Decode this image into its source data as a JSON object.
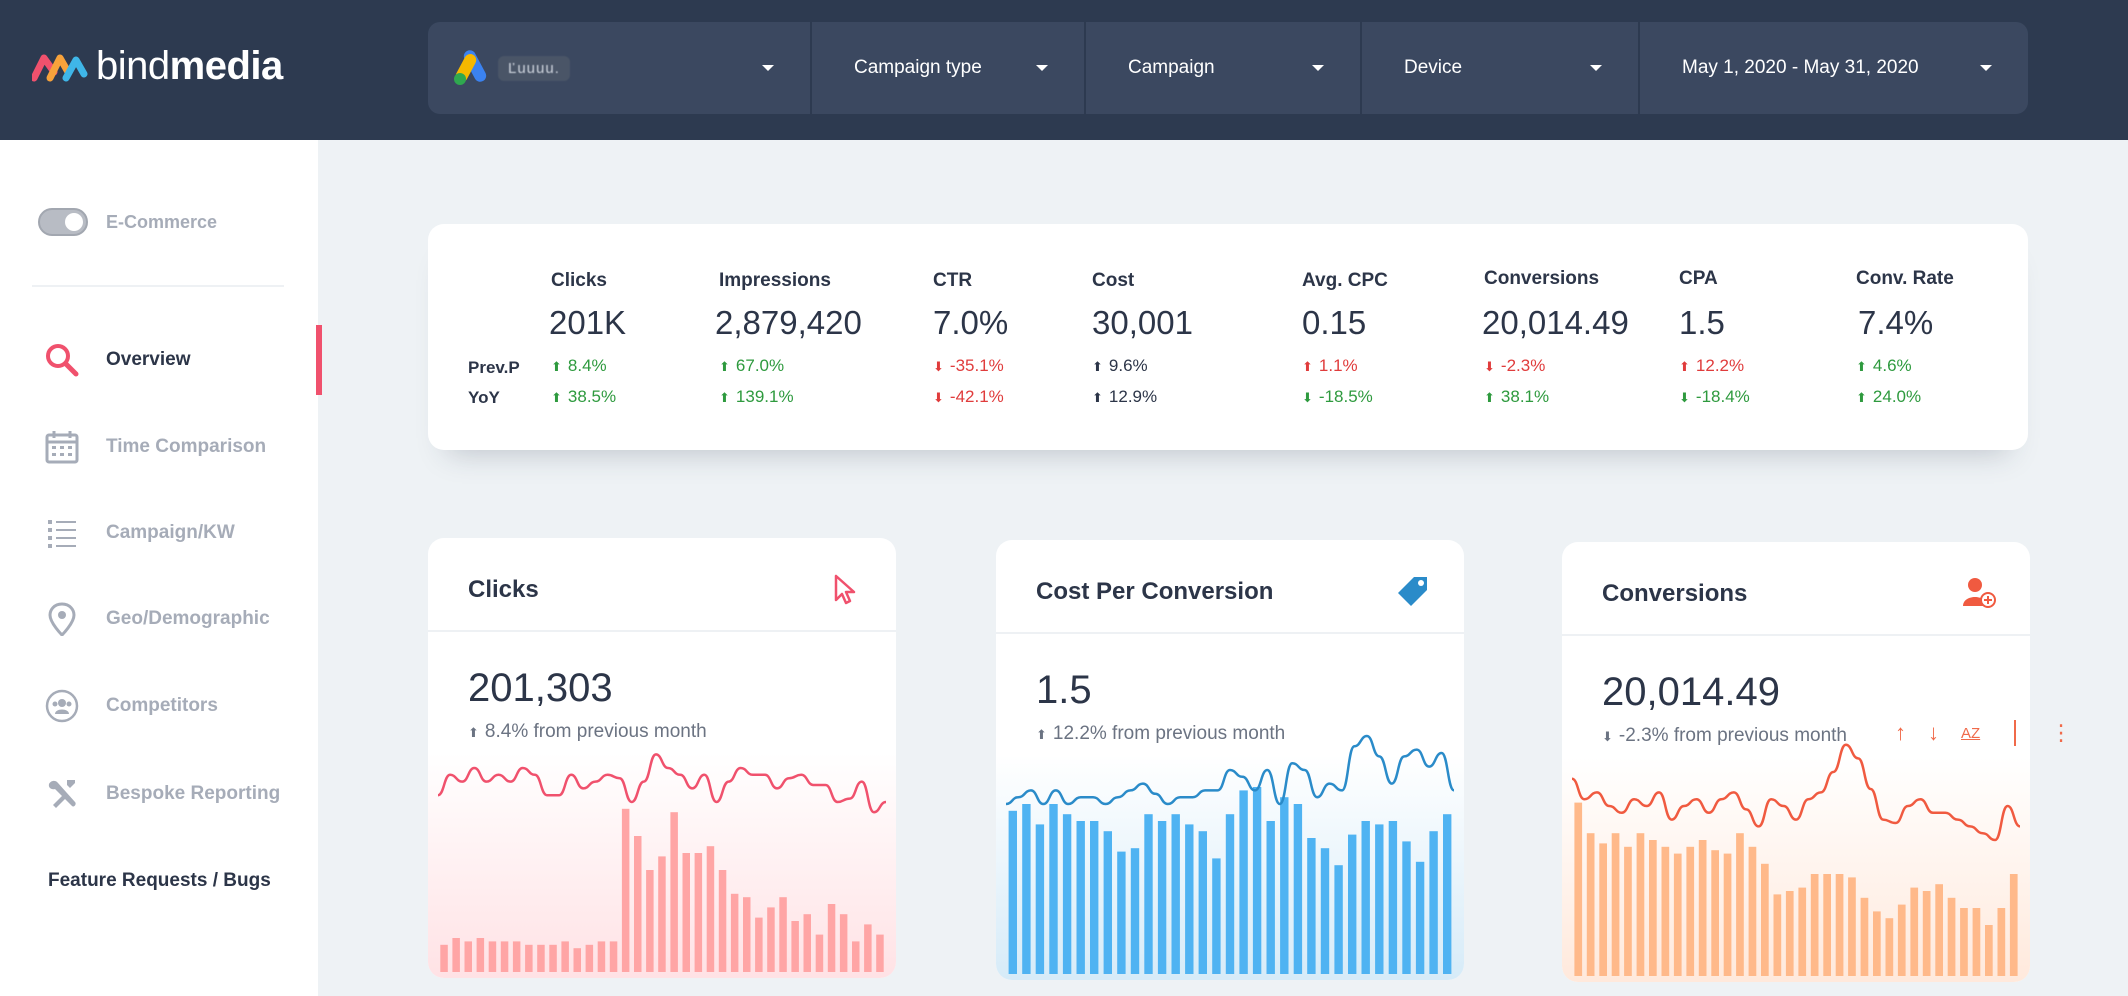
{
  "brand": {
    "name_part1": "bind",
    "name_part2": "media"
  },
  "filters": {
    "account": "\u0000",
    "campaign_type": "Campaign type",
    "campaign": "Campaign",
    "device": "Device",
    "date_range": "May 1, 2020 - May 31, 2020"
  },
  "sidebar": {
    "toggle_label": "E-Commerce",
    "items": [
      {
        "label": "Overview",
        "icon": "search-icon",
        "active": true
      },
      {
        "label": "Time Comparison",
        "icon": "calendar-icon",
        "active": false
      },
      {
        "label": "Campaign/KW",
        "icon": "list-icon",
        "active": false
      },
      {
        "label": "Geo/Demographic",
        "icon": "map-pin-icon",
        "active": false
      },
      {
        "label": "Competitors",
        "icon": "competitors-icon",
        "active": false
      },
      {
        "label": "Bespoke Reporting",
        "icon": "tools-icon",
        "active": false
      }
    ],
    "feature_link": "Feature Requests / Bugs"
  },
  "kpis": {
    "row_labels": [
      "Prev.P",
      "YoY"
    ],
    "items": [
      {
        "name": "Clicks",
        "value": "201K",
        "prev": "8.4%",
        "prev_dir": "up",
        "prev_tone": "good",
        "yoy": "38.5%",
        "yoy_dir": "up",
        "yoy_tone": "good"
      },
      {
        "name": "Impressions",
        "value": "2,879,420",
        "prev": "67.0%",
        "prev_dir": "up",
        "prev_tone": "good",
        "yoy": "139.1%",
        "yoy_dir": "up",
        "yoy_tone": "good"
      },
      {
        "name": "CTR",
        "value": "7.0%",
        "prev": "-35.1%",
        "prev_dir": "down",
        "prev_tone": "bad",
        "yoy": "-42.1%",
        "yoy_dir": "down",
        "yoy_tone": "bad"
      },
      {
        "name": "Cost",
        "value": "30,001",
        "prev": "9.6%",
        "prev_dir": "up",
        "prev_tone": "neutral",
        "yoy": "12.9%",
        "yoy_dir": "up",
        "yoy_tone": "neutral"
      },
      {
        "name": "Avg. CPC",
        "value": "0.15",
        "prev": "1.1%",
        "prev_dir": "up",
        "prev_tone": "bad",
        "yoy": "-18.5%",
        "yoy_dir": "down",
        "yoy_tone": "good"
      },
      {
        "name": "Conversions",
        "value": "20,014.49",
        "prev": "-2.3%",
        "prev_dir": "down",
        "prev_tone": "bad",
        "yoy": "38.1%",
        "yoy_dir": "up",
        "yoy_tone": "good"
      },
      {
        "name": "CPA",
        "value": "1.5",
        "prev": "12.2%",
        "prev_dir": "up",
        "prev_tone": "bad",
        "yoy": "-18.4%",
        "yoy_dir": "down",
        "yoy_tone": "good"
      },
      {
        "name": "Conv. Rate",
        "value": "7.4%",
        "prev": "4.6%",
        "prev_dir": "up",
        "prev_tone": "good",
        "yoy": "24.0%",
        "yoy_dir": "up",
        "yoy_tone": "good"
      }
    ]
  },
  "cards": [
    {
      "title": "Clicks",
      "icon": "cursor-icon",
      "value": "201,303",
      "change": "8.4% from previous month",
      "change_dir": "up",
      "color": "#f0516d",
      "bar_color": "#ffa5a5",
      "chart_data": {
        "type": "bar",
        "bars": [
          0.08,
          0.1,
          0.09,
          0.1,
          0.09,
          0.09,
          0.09,
          0.08,
          0.08,
          0.08,
          0.09,
          0.07,
          0.08,
          0.09,
          0.09,
          0.48,
          0.4,
          0.3,
          0.34,
          0.47,
          0.35,
          0.35,
          0.37,
          0.3,
          0.23,
          0.22,
          0.16,
          0.19,
          0.22,
          0.15,
          0.17,
          0.11,
          0.2,
          0.17,
          0.09,
          0.14,
          0.11
        ],
        "line": [
          0.52,
          0.58,
          0.56,
          0.6,
          0.56,
          0.58,
          0.56,
          0.6,
          0.58,
          0.52,
          0.52,
          0.58,
          0.54,
          0.56,
          0.58,
          0.57,
          0.5,
          0.56,
          0.64,
          0.6,
          0.58,
          0.54,
          0.58,
          0.5,
          0.56,
          0.6,
          0.58,
          0.58,
          0.54,
          0.57,
          0.58,
          0.55,
          0.55,
          0.5,
          0.51,
          0.56,
          0.47,
          0.5
        ]
      }
    },
    {
      "title": "Cost Per Conversion",
      "icon": "tag-icon",
      "value": "1.5",
      "change": "12.2% from previous month",
      "change_dir": "up",
      "color": "#2a8bc9",
      "bar_color": "#4fb3f2",
      "chart_data": {
        "type": "bar",
        "bars": [
          0.48,
          0.5,
          0.44,
          0.5,
          0.47,
          0.45,
          0.45,
          0.42,
          0.36,
          0.37,
          0.47,
          0.45,
          0.47,
          0.44,
          0.42,
          0.34,
          0.47,
          0.54,
          0.55,
          0.45,
          0.52,
          0.5,
          0.4,
          0.37,
          0.32,
          0.41,
          0.45,
          0.44,
          0.45,
          0.39,
          0.33,
          0.42,
          0.47
        ],
        "line": [
          0.5,
          0.52,
          0.54,
          0.5,
          0.54,
          0.5,
          0.52,
          0.52,
          0.5,
          0.52,
          0.54,
          0.56,
          0.53,
          0.5,
          0.52,
          0.52,
          0.54,
          0.54,
          0.6,
          0.58,
          0.54,
          0.6,
          0.5,
          0.62,
          0.6,
          0.52,
          0.56,
          0.54,
          0.67,
          0.7,
          0.64,
          0.56,
          0.64,
          0.66,
          0.61,
          0.65,
          0.54
        ]
      }
    },
    {
      "title": "Conversions",
      "icon": "add-user-icon",
      "value": "20,014.49",
      "change": "-2.3% from previous month",
      "change_dir": "down",
      "color": "#f05a40",
      "bar_color": "#ffb98a",
      "chart_data": {
        "type": "bar",
        "bars": [
          0.51,
          0.42,
          0.39,
          0.42,
          0.38,
          0.42,
          0.4,
          0.38,
          0.36,
          0.38,
          0.4,
          0.37,
          0.36,
          0.42,
          0.38,
          0.33,
          0.24,
          0.25,
          0.26,
          0.3,
          0.3,
          0.3,
          0.29,
          0.23,
          0.19,
          0.17,
          0.21,
          0.26,
          0.25,
          0.27,
          0.23,
          0.2,
          0.2,
          0.15,
          0.2,
          0.3
        ]
      }
    }
  ],
  "card_tools": {
    "sort_up": "↑",
    "sort_down": "↓",
    "sort_az": "AZ",
    "more": "⋮"
  }
}
